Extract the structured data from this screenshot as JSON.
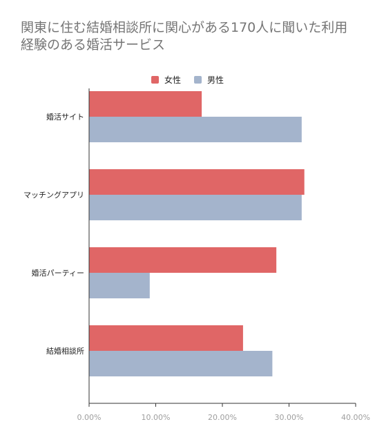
{
  "chart_data": {
    "type": "bar",
    "orientation": "horizontal",
    "title": "関東に住む結婚相談所に関心がある170人に聞いた利用経験のある婚活サービス",
    "categories": [
      "婚活サイト",
      "マッチングアプリ",
      "婚活パーティー",
      "結婚相談所"
    ],
    "series": [
      {
        "name": "女性",
        "color": "#e06666",
        "values": [
          0.169,
          0.323,
          0.281,
          0.231
        ]
      },
      {
        "name": "男性",
        "color": "#a4b4cc",
        "values": [
          0.319,
          0.319,
          0.091,
          0.275
        ]
      }
    ],
    "xlim": [
      0,
      0.4
    ],
    "ticks": [
      {
        "value": 0,
        "label": "0.00%"
      },
      {
        "value": 0.1,
        "label": "10.00%"
      },
      {
        "value": 0.2,
        "label": "20.00%"
      },
      {
        "value": 0.3,
        "label": "30.00%"
      },
      {
        "value": 0.4,
        "label": "40.00%"
      }
    ],
    "legend": "top",
    "grid": false
  }
}
